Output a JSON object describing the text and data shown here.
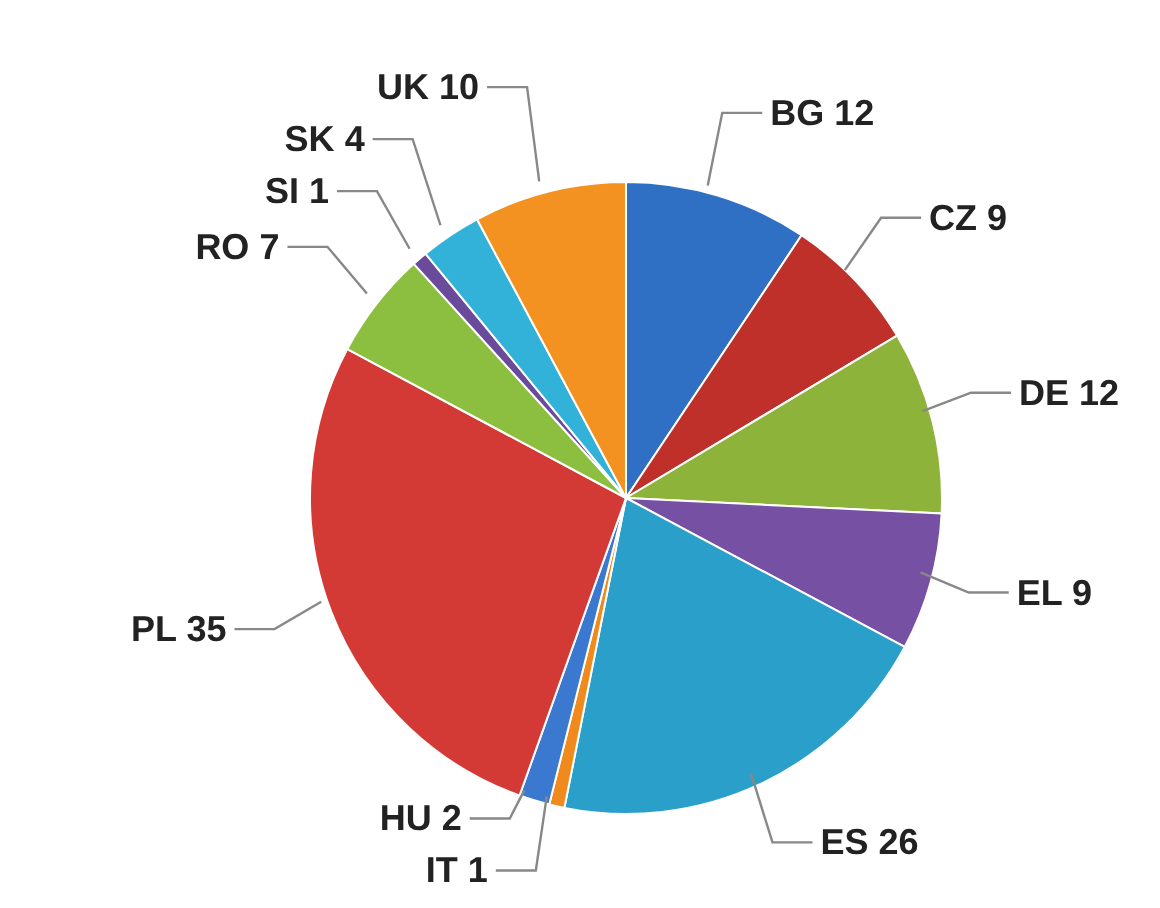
{
  "chart_data": {
    "type": "pie",
    "categories": [
      "BG",
      "CZ",
      "DE",
      "EL",
      "ES",
      "IT",
      "HU",
      "PL",
      "RO",
      "SI",
      "SK",
      "UK"
    ],
    "values": [
      12,
      9,
      12,
      9,
      26,
      1,
      2,
      35,
      7,
      1,
      4,
      10
    ],
    "colors": [
      "#2f6fc4",
      "#c0302b",
      "#8db33a",
      "#7550a3",
      "#2a9fc9",
      "#f08a1c",
      "#3a79cf",
      "#d33a35",
      "#8cbf3f",
      "#6a4a9a",
      "#33b2d9",
      "#f39220"
    ],
    "data_labels": true,
    "legend": false
  }
}
